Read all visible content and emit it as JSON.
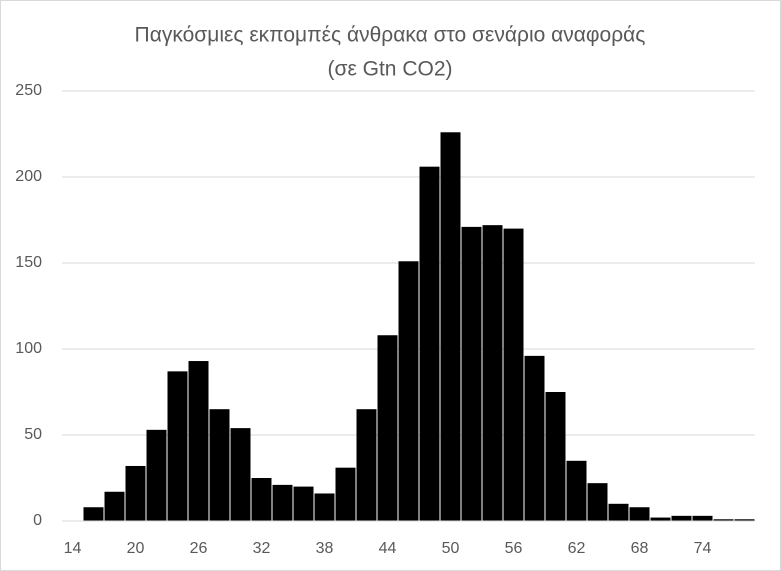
{
  "chart_data": {
    "type": "histogram",
    "title": "Παγκόσμιες εκπομπές άνθρακα στο σενάριο αναφοράς",
    "subtitle": "(σε Gtn CO2)",
    "bins": [
      13,
      15,
      17,
      19,
      21,
      23,
      25,
      27,
      29,
      31,
      33,
      35,
      37,
      39,
      41,
      43,
      45,
      47,
      49,
      51,
      53,
      55,
      57,
      59,
      61,
      63,
      65,
      67,
      69,
      71,
      73,
      75,
      77,
      79
    ],
    "values": [
      0,
      8,
      17,
      32,
      53,
      87,
      93,
      65,
      54,
      25,
      21,
      20,
      16,
      31,
      65,
      108,
      151,
      206,
      226,
      171,
      172,
      170,
      96,
      75,
      35,
      22,
      10,
      8,
      2,
      3,
      3,
      1,
      1
    ],
    "color": "#000000",
    "xlim": [
      13,
      79
    ],
    "xticks": [
      14,
      20,
      26,
      32,
      38,
      44,
      50,
      56,
      62,
      68,
      74
    ],
    "ylim": [
      0,
      250
    ],
    "yticks": [
      0,
      50,
      100,
      150,
      200,
      250
    ],
    "grid": true
  }
}
